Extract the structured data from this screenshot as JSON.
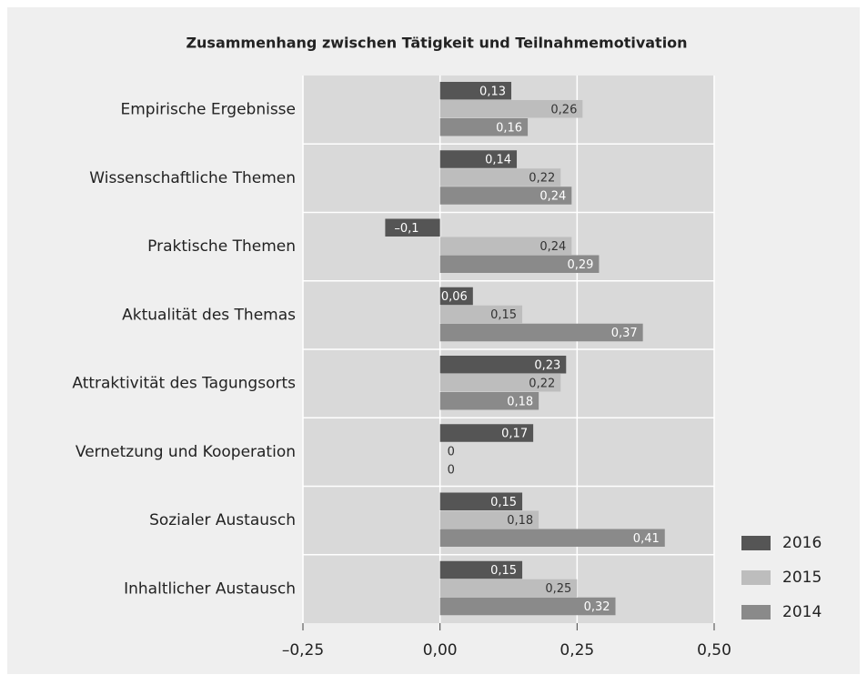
{
  "chart_data": {
    "type": "bar",
    "orientation": "horizontal",
    "title": "Zusammenhang zwischen Tätigkeit und Teilnahmemotivation",
    "categories": [
      "Empirische Ergebnisse",
      "Wissenschaftliche Themen",
      "Praktische Themen",
      "Aktualität des Themas",
      "Attraktivität des Tagungsorts",
      "Vernetzung und Kooperation",
      "Sozialer Austausch",
      "Inhaltlicher Austausch"
    ],
    "series": [
      {
        "name": "2016",
        "color": "#555555",
        "text_color": "#ffffff",
        "values": [
          0.13,
          0.14,
          -0.1,
          0.06,
          0.23,
          0.17,
          0.15,
          0.15
        ],
        "value_labels": [
          "0,13",
          "0,14",
          "–0,1",
          "0,06",
          "0,23",
          "0,17",
          "0,15",
          "0,15"
        ]
      },
      {
        "name": "2015",
        "color": "#bdbdbd",
        "text_color": "#333333",
        "values": [
          0.26,
          0.22,
          0.24,
          0.15,
          0.22,
          0,
          0.18,
          0.25
        ],
        "value_labels": [
          "0,26",
          "0,22",
          "0,24",
          "0,15",
          "0,22",
          "0",
          "0,18",
          "0,25"
        ]
      },
      {
        "name": "2014",
        "color": "#8a8a8a",
        "text_color": "#ffffff",
        "values": [
          0.16,
          0.24,
          0.29,
          0.37,
          0.18,
          0,
          0.41,
          0.32
        ],
        "value_labels": [
          "0,16",
          "0,24",
          "0,29",
          "0,37",
          "0,18",
          "0",
          "0,41",
          "0,32"
        ]
      }
    ],
    "xlim": [
      -0.25,
      0.5
    ],
    "xticks": [
      {
        "value": -0.25,
        "label": "–0,25"
      },
      {
        "value": 0,
        "label": "0,00"
      },
      {
        "value": 0.25,
        "label": "0,25"
      },
      {
        "value": 0.5,
        "label": "0,50"
      }
    ],
    "grid": true,
    "legend": "right"
  }
}
